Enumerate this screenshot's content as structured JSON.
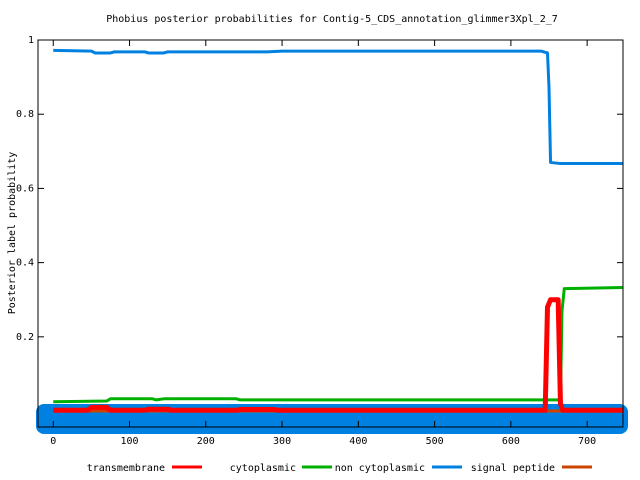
{
  "chart_data": {
    "type": "line",
    "title": "Phobius posterior probabilities for Contig-5_CDS_annotation_glimmer3Xpl_2_7",
    "y_label": "Posterior label probability",
    "xlim": [
      -20,
      747
    ],
    "ylim": [
      -0.043,
      1
    ],
    "xticks": [
      0,
      100,
      200,
      300,
      400,
      500,
      600,
      700
    ],
    "yticks": [
      0.2,
      0.4,
      0.6,
      0.8,
      1
    ],
    "grid": false,
    "legend": "bottom",
    "series": [
      {
        "name": "transmembrane",
        "color": "#ff0000",
        "x": [
          0,
          45,
          50,
          70,
          75,
          120,
          125,
          150,
          155,
          240,
          245,
          290,
          295,
          645,
          648,
          652,
          662,
          665,
          668,
          747
        ],
        "values": [
          0.002,
          0.002,
          0.01,
          0.01,
          0.002,
          0.002,
          0.005,
          0.005,
          0.002,
          0.002,
          0.004,
          0.004,
          0.002,
          0.002,
          0.28,
          0.3,
          0.3,
          0.02,
          0.002,
          0.002
        ]
      },
      {
        "name": "cytoplasmic",
        "color": "#00b000",
        "x": [
          0,
          70,
          75,
          130,
          135,
          145,
          240,
          245,
          640,
          665,
          667,
          670,
          747
        ],
        "values": [
          0.025,
          0.027,
          0.033,
          0.033,
          0.03,
          0.033,
          0.033,
          0.03,
          0.03,
          0.03,
          0.27,
          0.33,
          0.333
        ]
      },
      {
        "name": "non cytoplasmic",
        "color": "#0080e0",
        "x": [
          0,
          50,
          55,
          75,
          80,
          120,
          125,
          145,
          150,
          280,
          300,
          640,
          648,
          650,
          652,
          665,
          747
        ],
        "values": [
          0.972,
          0.97,
          0.965,
          0.965,
          0.968,
          0.968,
          0.965,
          0.965,
          0.968,
          0.968,
          0.97,
          0.97,
          0.965,
          0.87,
          0.67,
          0.667,
          0.667
        ]
      },
      {
        "name": "signal peptide",
        "color": "#cc4400",
        "x": [
          0,
          747
        ],
        "values": [
          0,
          0
        ]
      }
    ]
  }
}
